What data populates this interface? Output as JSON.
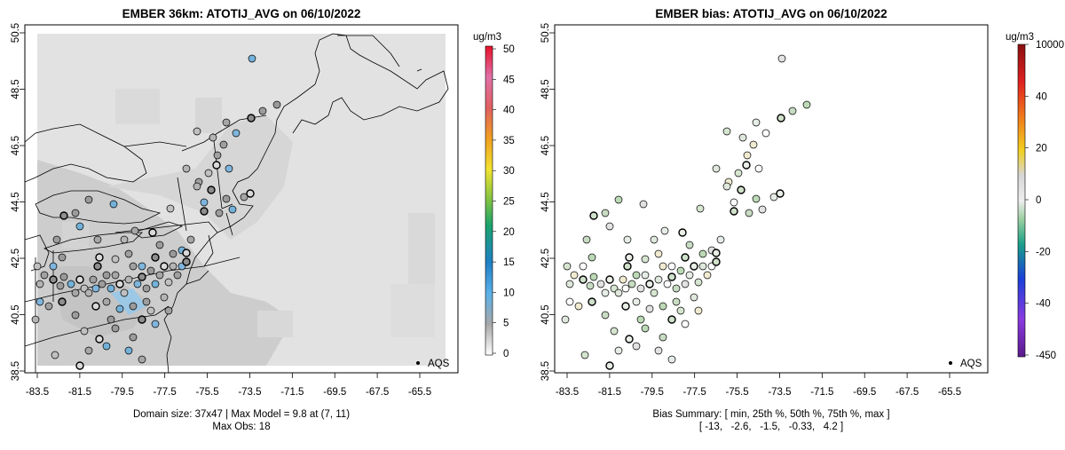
{
  "colors": {
    "fill_gray": "#e2e2e2",
    "fill_dark": "#cfcfcf",
    "fill_mid": "#d8d8d8",
    "dot_light_blue": "#73b1d8",
    "dot_gray": "#9c9c9c",
    "dot_light": "#dcdcdc",
    "bias_green": "#c8dcc3",
    "bias_pale": "#e6ece6"
  },
  "panels": [
    {
      "title": "EMBER 36km: ATOTIJ_AVG on 06/10/2022",
      "unit": "ug/m3",
      "x_ticks": [
        "-83.5",
        "-81.5",
        "-79.5",
        "-77.5",
        "-75.5",
        "-73.5",
        "-71.5",
        "-69.5",
        "-67.5",
        "-65.5"
      ],
      "y_ticks": [
        "38.5",
        "40.5",
        "42.5",
        "44.5",
        "46.5",
        "48.5",
        "50.5"
      ],
      "legend_ticks": [
        "50",
        "45",
        "40",
        "35",
        "30",
        "25",
        "20",
        "15",
        "10",
        "5",
        "0"
      ],
      "station_label": "AQS",
      "footer": [
        "Domain size: 37x47 | Max Model = 9.8 at (7, 11)",
        "Max Obs: 18"
      ]
    },
    {
      "title": "EMBER bias: ATOTIJ_AVG on 06/10/2022",
      "unit": "ug/m3",
      "x_ticks": [
        "-83.5",
        "-81.5",
        "-79.5",
        "-77.5",
        "-75.5",
        "-73.5",
        "-71.5",
        "-69.5",
        "-67.5",
        "-65.5"
      ],
      "y_ticks": [
        "38.5",
        "40.5",
        "42.5",
        "44.5",
        "46.5",
        "48.5",
        "50.5"
      ],
      "legend_ticks": [
        "10000",
        "40",
        "20",
        "0",
        "-20",
        "-40",
        "-450"
      ],
      "station_label": "AQS",
      "footer": [
        "Bias Summary: [ min, 25th %, 50th %, 75th %, max ]",
        "[ -13,   -2.6,   -1.5,   -0.33,   4.2 ]"
      ]
    }
  ]
}
